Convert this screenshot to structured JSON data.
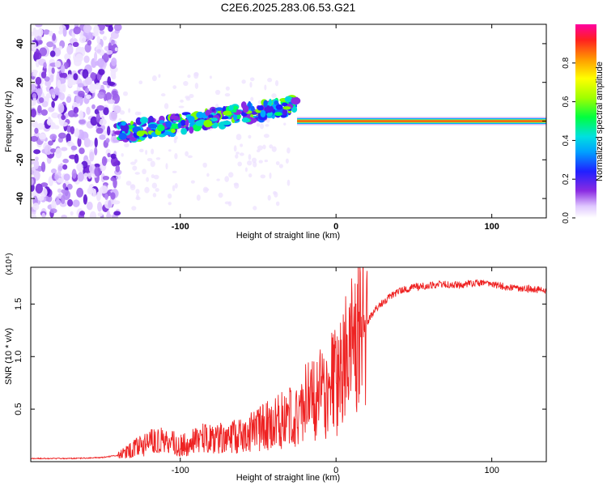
{
  "title": "C2E6.2025.283.06.53.G21",
  "colors": {
    "snr_line": "#ee2222",
    "axis": "#000000",
    "background": "#ffffff"
  },
  "chart_data": [
    {
      "type": "heatmap",
      "name": "spectrogram",
      "title": "C2E6.2025.283.06.53.G21",
      "xlabel": "Height of straight line (km)",
      "ylabel": "Frequency (Hz)",
      "xlim": [
        -196,
        135
      ],
      "ylim": [
        -50,
        50
      ],
      "xticks": [
        -100,
        0,
        100
      ],
      "yticks": [
        -40,
        -20,
        0,
        20,
        40
      ],
      "colorbar": {
        "label": "Normalized spectral amplitude",
        "range": [
          0,
          1
        ],
        "ticks": [
          0.0,
          0.2,
          0.4,
          0.6,
          0.8
        ]
      },
      "regions": [
        {
          "name": "broadband noise",
          "x": [
            -196,
            -140
          ],
          "freq": [
            -50,
            50
          ],
          "amplitude": 0.12
        },
        {
          "name": "signal track",
          "x": [
            -140,
            -25
          ],
          "freq_start": -6,
          "freq_end": 8,
          "amplitude": 0.35
        },
        {
          "name": "stable carrier",
          "x": [
            -25,
            135
          ],
          "freq": [
            0,
            0
          ],
          "amplitude": 0.75
        }
      ]
    },
    {
      "type": "line",
      "name": "snr",
      "xlabel": "Height of straight line (km)",
      "ylabel": "SNR (10 * v/v)",
      "scale_label": "(x10⁴)",
      "xlim": [
        -196,
        135
      ],
      "ylim": [
        0,
        1.85
      ],
      "xticks": [
        -100,
        0,
        100
      ],
      "yticks": [
        0.5,
        1.0,
        1.5
      ],
      "series": [
        {
          "name": "SNR",
          "x": [
            -196,
            -170,
            -150,
            -140,
            -130,
            -120,
            -110,
            -100,
            -90,
            -80,
            -70,
            -60,
            -50,
            -40,
            -30,
            -25,
            -20,
            -15,
            -10,
            -5,
            0,
            5,
            10,
            15,
            20,
            25,
            30,
            40,
            50,
            60,
            70,
            80,
            90,
            100,
            110,
            120,
            135
          ],
          "values": [
            0.03,
            0.03,
            0.04,
            0.06,
            0.12,
            0.18,
            0.2,
            0.15,
            0.2,
            0.23,
            0.22,
            0.25,
            0.3,
            0.38,
            0.42,
            0.48,
            0.55,
            0.6,
            0.65,
            0.72,
            0.8,
            0.92,
            1.05,
            1.18,
            1.32,
            1.45,
            1.52,
            1.62,
            1.66,
            1.68,
            1.69,
            1.68,
            1.7,
            1.69,
            1.66,
            1.65,
            1.63
          ]
        }
      ]
    }
  ]
}
